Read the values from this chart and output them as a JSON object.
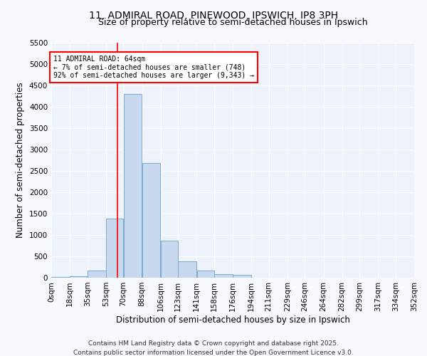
{
  "title": "11, ADMIRAL ROAD, PINEWOOD, IPSWICH, IP8 3PH",
  "subtitle": "Size of property relative to semi-detached houses in Ipswich",
  "xlabel": "Distribution of semi-detached houses by size in Ipswich",
  "ylabel": "Number of semi-detached properties",
  "bar_color": "#c8d8ee",
  "bar_edge_color": "#7aaad0",
  "fig_bg_color": "#f8f8ff",
  "ax_bg_color": "#eef2fb",
  "annotation_text": "11 ADMIRAL ROAD: 64sqm\n← 7% of semi-detached houses are smaller (748)\n92% of semi-detached houses are larger (9,343) →",
  "vline_x": 64,
  "vline_color": "red",
  "ylim": [
    0,
    5500
  ],
  "yticks": [
    0,
    500,
    1000,
    1500,
    2000,
    2500,
    3000,
    3500,
    4000,
    4500,
    5000,
    5500
  ],
  "bin_edges": [
    0,
    18,
    35,
    53,
    70,
    88,
    106,
    123,
    141,
    158,
    176,
    194,
    211,
    229,
    246,
    264,
    282,
    299,
    317,
    334,
    352
  ],
  "bin_counts": [
    10,
    30,
    170,
    1390,
    4300,
    2680,
    870,
    390,
    160,
    80,
    70,
    0,
    0,
    0,
    0,
    0,
    0,
    0,
    0,
    0
  ],
  "footer_line1": "Contains HM Land Registry data © Crown copyright and database right 2025.",
  "footer_line2": "Contains public sector information licensed under the Open Government Licence v3.0.",
  "title_fontsize": 10,
  "subtitle_fontsize": 9,
  "label_fontsize": 8.5,
  "tick_fontsize": 7.5,
  "footer_fontsize": 6.5
}
